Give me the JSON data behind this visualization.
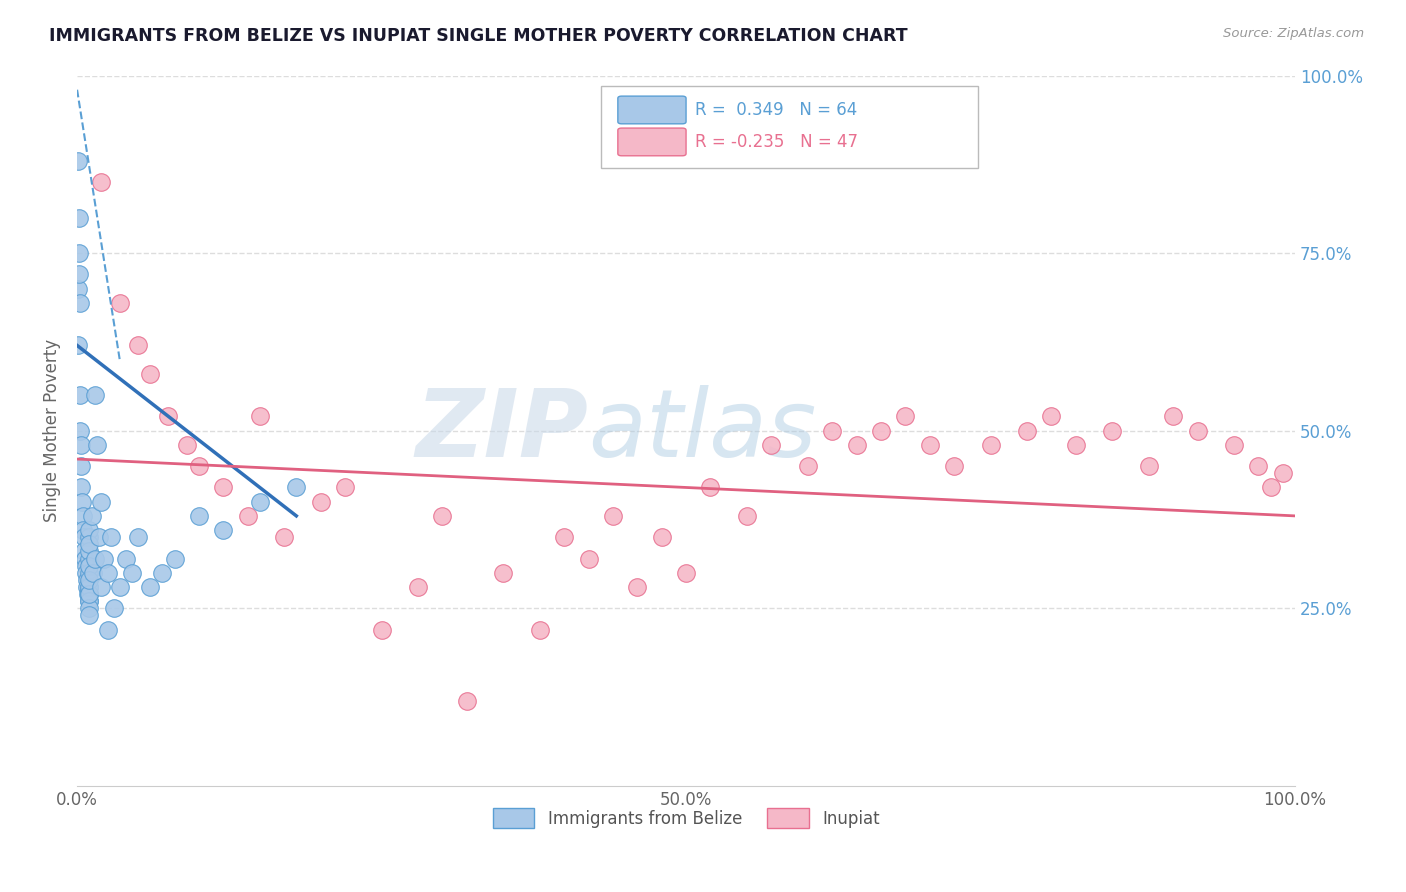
{
  "title": "IMMIGRANTS FROM BELIZE VS INUPIAT SINGLE MOTHER POVERTY CORRELATION CHART",
  "source": "Source: ZipAtlas.com",
  "ylabel": "Single Mother Poverty",
  "legend_blue_R": "R =  0.349",
  "legend_blue_N": "N = 64",
  "legend_pink_R": "R = -0.235",
  "legend_pink_N": "N = 47",
  "blue_fill": "#a8c8e8",
  "pink_fill": "#f5b8c8",
  "blue_edge": "#5a9fd4",
  "pink_edge": "#e87090",
  "blue_line": "#3070b8",
  "pink_line": "#e06080",
  "watermark_zip": "ZIP",
  "watermark_atlas": "atlas",
  "blue_scatter_x": [
    0.05,
    0.08,
    0.1,
    0.12,
    0.15,
    0.18,
    0.2,
    0.22,
    0.25,
    0.28,
    0.3,
    0.35,
    0.4,
    0.45,
    0.5,
    0.55,
    0.6,
    0.65,
    0.7,
    0.75,
    0.8,
    0.85,
    0.9,
    0.95,
    1.0,
    1.0,
    1.0,
    1.0,
    1.0,
    1.0,
    1.0,
    1.0,
    1.0,
    1.0,
    1.0,
    1.0,
    1.0,
    1.0,
    1.0,
    1.0,
    1.2,
    1.3,
    1.5,
    1.5,
    1.6,
    1.8,
    2.0,
    2.0,
    2.2,
    2.5,
    2.8,
    3.0,
    3.5,
    4.0,
    4.5,
    5.0,
    6.0,
    7.0,
    8.0,
    10.0,
    12.0,
    15.0,
    18.0,
    2.5
  ],
  "blue_scatter_y": [
    88.0,
    70.0,
    62.0,
    75.0,
    80.0,
    72.0,
    68.0,
    55.0,
    50.0,
    48.0,
    45.0,
    42.0,
    40.0,
    38.0,
    36.0,
    35.0,
    33.0,
    32.0,
    31.0,
    30.0,
    29.0,
    28.0,
    27.0,
    27.0,
    26.0,
    35.0,
    32.0,
    30.0,
    28.0,
    27.0,
    33.0,
    31.0,
    36.0,
    34.0,
    28.0,
    26.0,
    25.0,
    27.0,
    29.0,
    24.0,
    38.0,
    30.0,
    55.0,
    32.0,
    48.0,
    35.0,
    28.0,
    40.0,
    32.0,
    30.0,
    35.0,
    25.0,
    28.0,
    32.0,
    30.0,
    35.0,
    28.0,
    30.0,
    32.0,
    38.0,
    36.0,
    40.0,
    42.0,
    22.0
  ],
  "pink_scatter_x": [
    2.0,
    3.5,
    5.0,
    6.0,
    7.5,
    9.0,
    10.0,
    12.0,
    14.0,
    15.0,
    17.0,
    20.0,
    22.0,
    25.0,
    28.0,
    30.0,
    32.0,
    35.0,
    38.0,
    40.0,
    42.0,
    44.0,
    46.0,
    48.0,
    50.0,
    52.0,
    55.0,
    57.0,
    60.0,
    62.0,
    64.0,
    66.0,
    68.0,
    70.0,
    72.0,
    75.0,
    78.0,
    80.0,
    82.0,
    85.0,
    88.0,
    90.0,
    92.0,
    95.0,
    97.0,
    98.0,
    99.0
  ],
  "pink_scatter_y": [
    85.0,
    68.0,
    62.0,
    58.0,
    52.0,
    48.0,
    45.0,
    42.0,
    38.0,
    52.0,
    35.0,
    40.0,
    42.0,
    22.0,
    28.0,
    38.0,
    12.0,
    30.0,
    22.0,
    35.0,
    32.0,
    38.0,
    28.0,
    35.0,
    30.0,
    42.0,
    38.0,
    48.0,
    45.0,
    50.0,
    48.0,
    50.0,
    52.0,
    48.0,
    45.0,
    48.0,
    50.0,
    52.0,
    48.0,
    50.0,
    45.0,
    52.0,
    50.0,
    48.0,
    45.0,
    42.0,
    44.0
  ],
  "blue_trend_x0": 0.0,
  "blue_trend_x1": 18.0,
  "blue_trend_y0": 62.0,
  "blue_trend_y1": 38.0,
  "blue_dash_x0": 0.0,
  "blue_dash_x1": 3.5,
  "blue_dash_y0": 98.0,
  "blue_dash_y1": 60.0,
  "pink_trend_x0": 0.0,
  "pink_trend_x1": 100.0,
  "pink_trend_y0": 46.0,
  "pink_trend_y1": 38.0,
  "xlim": [
    0,
    100
  ],
  "ylim": [
    0,
    100
  ],
  "ytick_positions": [
    25,
    50,
    75,
    100
  ],
  "ytick_labels_right": [
    "25.0%",
    "50.0%",
    "75.0%",
    "100.0%"
  ],
  "xtick_positions": [
    0,
    50,
    100
  ],
  "xtick_labels": [
    "0.0%",
    "50.0%",
    "100.0%"
  ],
  "background_color": "#ffffff",
  "grid_color": "#dddddd",
  "grid_style": "--"
}
